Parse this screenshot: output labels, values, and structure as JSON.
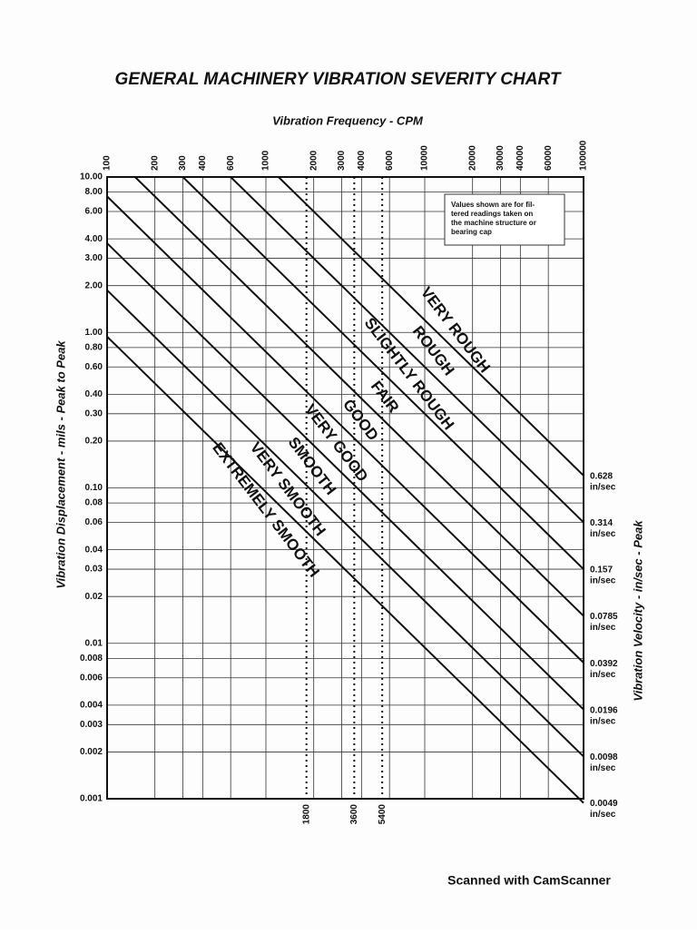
{
  "chart_data": {
    "type": "line",
    "title": "GENERAL MACHINERY VIBRATION SEVERITY CHART",
    "x_label": "Vibration Frequency - CPM",
    "y_label": "Vibration Displacement - mils - Peak to Peak",
    "y2_label": "Vibration Velocity - in/sec - Peak",
    "log_x": true,
    "log_y": true,
    "grid": true,
    "xlim": [
      100,
      100000
    ],
    "ylim": [
      0.001,
      10
    ],
    "xticks": [
      100,
      200,
      300,
      400,
      600,
      1000,
      2000,
      3000,
      4000,
      6000,
      10000,
      20000,
      30000,
      40000,
      60000,
      100000
    ],
    "reference_x": [
      1800,
      3600,
      5400
    ],
    "yticks": [
      {
        "value": 10,
        "label": "10.00"
      },
      {
        "value": 8,
        "label": "8.00"
      },
      {
        "value": 6,
        "label": "6.00"
      },
      {
        "value": 4,
        "label": "4.00"
      },
      {
        "value": 3,
        "label": "3.00"
      },
      {
        "value": 2,
        "label": "2.00"
      },
      {
        "value": 1,
        "label": "1.00"
      },
      {
        "value": 0.8,
        "label": "0.80"
      },
      {
        "value": 0.6,
        "label": "0.60"
      },
      {
        "value": 0.4,
        "label": "0.40"
      },
      {
        "value": 0.3,
        "label": "0.30"
      },
      {
        "value": 0.2,
        "label": "0.20"
      },
      {
        "value": 0.1,
        "label": "0.10"
      },
      0.08,
      0.06,
      0.04,
      0.03,
      0.02,
      0.01,
      0.008,
      0.006,
      0.004,
      0.003,
      0.002,
      0.001
    ],
    "series": [
      {
        "name": "0.628",
        "unit": "in/sec",
        "color": "#111111",
        "x": [
          1200,
          100000
        ],
        "values": [
          10,
          0.12
        ]
      },
      {
        "name": "0.314",
        "unit": "in/sec",
        "color": "#111111",
        "x": [
          600,
          100000
        ],
        "values": [
          10,
          0.06
        ]
      },
      {
        "name": "0.157",
        "unit": "in/sec",
        "color": "#111111",
        "x": [
          300,
          100000
        ],
        "values": [
          10,
          0.03
        ]
      },
      {
        "name": "0.0785",
        "unit": "in/sec",
        "color": "#111111",
        "x": [
          150,
          100000
        ],
        "values": [
          10,
          0.015
        ]
      },
      {
        "name": "0.0392",
        "unit": "in/sec",
        "color": "#111111",
        "x": [
          100,
          100000
        ],
        "values": [
          7.5,
          0.0075
        ]
      },
      {
        "name": "0.0196",
        "unit": "in/sec",
        "color": "#111111",
        "x": [
          100,
          100000
        ],
        "values": [
          3.75,
          0.00375
        ]
      },
      {
        "name": "0.0098",
        "unit": "in/sec",
        "color": "#111111",
        "x": [
          100,
          100000
        ],
        "values": [
          1.87,
          0.00187
        ]
      },
      {
        "name": "0.0049",
        "unit": "in/sec",
        "color": "#111111",
        "x": [
          100,
          100000
        ],
        "values": [
          0.94,
          0.00094
        ]
      }
    ],
    "zones": [
      "VERY ROUGH",
      "ROUGH",
      "SLIGHTLY ROUGH",
      "FAIR",
      "GOOD",
      "VERY GOOD",
      "SMOOTH",
      "VERY SMOOTH",
      "EXTREMELY SMOOTH"
    ],
    "note": [
      "Values shown are for fil-",
      "tered readings taken on",
      "the machine structure or",
      "bearing cap"
    ]
  },
  "footer": "Scanned with CamScanner"
}
